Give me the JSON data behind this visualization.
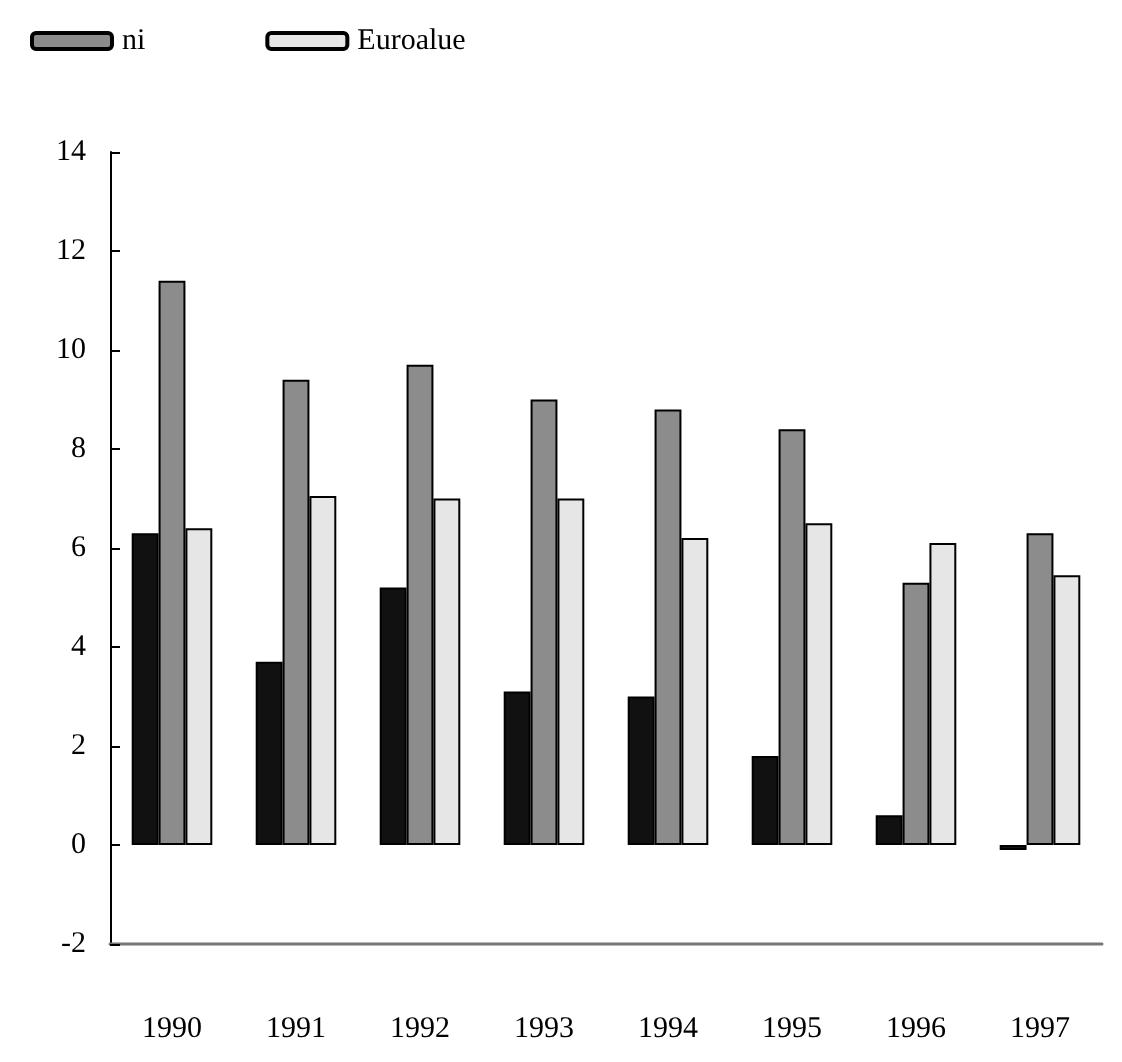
{
  "chart_data": {
    "type": "bar",
    "categories": [
      "1990",
      "1991",
      "1992",
      "1993",
      "1994",
      "1995",
      "1996",
      "1997"
    ],
    "series": [
      {
        "color": "#111111",
        "values": [
          6.3,
          3.7,
          5.2,
          3.1,
          3.0,
          1.8,
          0.6,
          -0.1
        ]
      },
      {
        "name": "ni",
        "color": "#8c8c8c",
        "values": [
          11.4,
          9.4,
          9.7,
          9.0,
          8.8,
          8.4,
          5.3,
          6.3
        ]
      },
      {
        "name": "Euroalue",
        "color": "#e6e6e6",
        "values": [
          6.4,
          7.05,
          7.0,
          7.0,
          6.2,
          6.5,
          6.1,
          5.45
        ]
      }
    ],
    "ylim": [
      -2,
      14
    ],
    "yticks": [
      -2,
      0,
      2,
      4,
      6,
      8,
      10,
      12,
      14
    ],
    "grid": false,
    "legend": "top left"
  }
}
